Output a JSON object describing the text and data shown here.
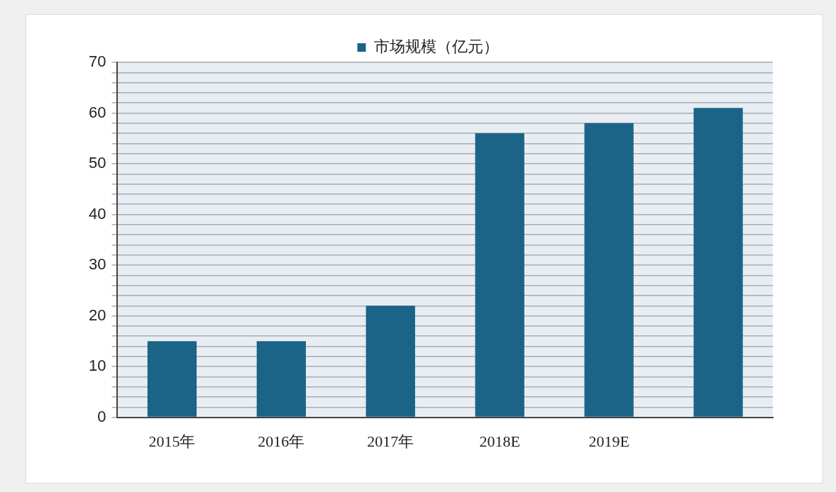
{
  "chart_data": {
    "type": "bar",
    "categories": [
      "2015年",
      "2016年",
      "2017年",
      "2018E",
      "2019E",
      null
    ],
    "series": [
      {
        "name": "市场规模（亿元）",
        "color": "#1b6487",
        "values": [
          15,
          15,
          22,
          56,
          58,
          61
        ]
      }
    ],
    "ylim": [
      0,
      70
    ],
    "yticks": [
      0,
      {
        "value": 2,
        "label": null
      },
      {
        "value": 4,
        "label": null
      },
      {
        "value": 6,
        "label": null
      },
      {
        "value": 8,
        "label": null
      },
      10,
      {
        "value": 12,
        "label": null
      },
      {
        "value": 14,
        "label": null
      },
      {
        "value": 16,
        "label": null
      },
      {
        "value": 18,
        "label": null
      },
      20,
      {
        "value": 22,
        "label": null
      },
      {
        "value": 24,
        "label": null
      },
      {
        "value": 26,
        "label": null
      },
      {
        "value": 28,
        "label": null
      },
      30,
      {
        "value": 32,
        "label": null
      },
      {
        "value": 34,
        "label": null
      },
      {
        "value": 36,
        "label": null
      },
      {
        "value": 38,
        "label": null
      },
      40,
      {
        "value": 42,
        "label": null
      },
      {
        "value": 44,
        "label": null
      },
      {
        "value": 46,
        "label": null
      },
      {
        "value": 48,
        "label": null
      },
      50,
      {
        "value": 52,
        "label": null
      },
      {
        "value": 54,
        "label": null
      },
      {
        "value": 56,
        "label": null
      },
      {
        "value": 58,
        "label": null
      },
      60,
      {
        "value": 62,
        "label": null
      },
      {
        "value": 64,
        "label": null
      },
      {
        "value": 66,
        "label": null
      },
      {
        "value": 68,
        "label": null
      },
      70
    ],
    "grid": "y",
    "legend": "top"
  }
}
